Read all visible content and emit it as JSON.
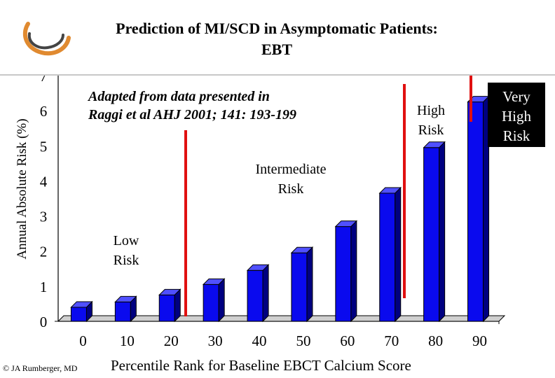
{
  "title": {
    "line1": "Prediction of MI/SCD in Asymptomatic Patients:",
    "line2": "EBT"
  },
  "source_note": {
    "line1": "Adapted from data presented in",
    "line2": "Raggi et al AHJ 2001; 141: 193-199"
  },
  "risk_labels": {
    "low": [
      "Low",
      "Risk"
    ],
    "intermediate": [
      "Intermediate",
      "Risk"
    ],
    "high": [
      "High",
      "Risk"
    ],
    "very_high": [
      "Very",
      "High",
      "Risk"
    ]
  },
  "copyright": "© JA Rumberger, MD",
  "colors": {
    "bar_front": "#0a0aee",
    "bar_side": "#000080",
    "bar_top": "#5050ff",
    "divider": "#e01010"
  },
  "chart_data": {
    "type": "bar",
    "categories": [
      "0",
      "10",
      "20",
      "30",
      "40",
      "50",
      "60",
      "70",
      "80",
      "90"
    ],
    "values": [
      0.4,
      0.55,
      0.75,
      1.05,
      1.45,
      1.95,
      2.7,
      3.65,
      4.95,
      6.25
    ],
    "xlabel": "Percentile Rank for Baseline EBCT Calcium Score",
    "ylabel": "Annual Absolute Risk (%)",
    "ylim": [
      0,
      7
    ],
    "yticks": [
      "0",
      "1",
      "2",
      "3",
      "4",
      "5",
      "6",
      "7"
    ],
    "grid": false,
    "legend": "none"
  }
}
